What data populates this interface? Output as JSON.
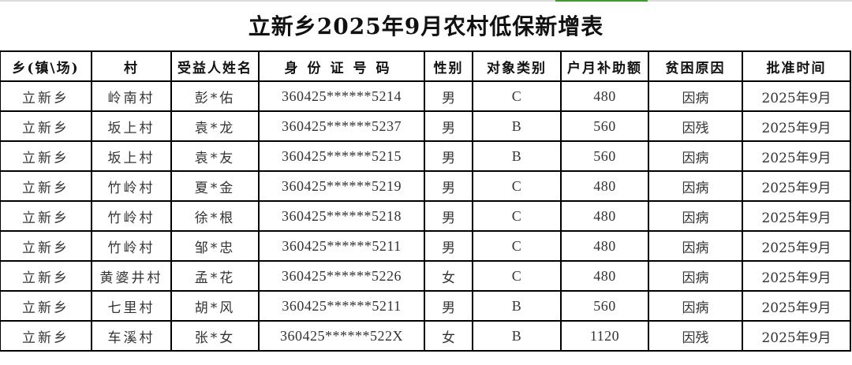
{
  "title": "立新乡2025年9月农村低保新增表",
  "accent_color": "#3f9b2a",
  "columns": [
    "乡(镇\\场)",
    "村",
    "受益人姓名",
    "身份证号码",
    "性别",
    "对象类别",
    "户月补助额",
    "贫困原因",
    "批准时间"
  ],
  "rows": [
    [
      "立新乡",
      "岭南村",
      "彭*佑",
      "360425******5214",
      "男",
      "C",
      "480",
      "因病",
      "2025年9月"
    ],
    [
      "立新乡",
      "坂上村",
      "袁*龙",
      "360425******5237",
      "男",
      "B",
      "560",
      "因残",
      "2025年9月"
    ],
    [
      "立新乡",
      "坂上村",
      "袁*友",
      "360425******5215",
      "男",
      "B",
      "560",
      "因病",
      "2025年9月"
    ],
    [
      "立新乡",
      "竹岭村",
      "夏*金",
      "360425******5219",
      "男",
      "C",
      "480",
      "因病",
      "2025年9月"
    ],
    [
      "立新乡",
      "竹岭村",
      "徐*根",
      "360425******5218",
      "男",
      "C",
      "480",
      "因病",
      "2025年9月"
    ],
    [
      "立新乡",
      "竹岭村",
      "邹*忠",
      "360425******5211",
      "男",
      "C",
      "480",
      "因病",
      "2025年9月"
    ],
    [
      "立新乡",
      "黄婆井村",
      "孟*花",
      "360425******5226",
      "女",
      "C",
      "480",
      "因病",
      "2025年9月"
    ],
    [
      "立新乡",
      "七里村",
      "胡*风",
      "360425******5211",
      "男",
      "B",
      "560",
      "因病",
      "2025年9月"
    ],
    [
      "立新乡",
      "车溪村",
      "张*女",
      "360425******522X",
      "女",
      "B",
      "1120",
      "因残",
      "2025年9月"
    ]
  ]
}
